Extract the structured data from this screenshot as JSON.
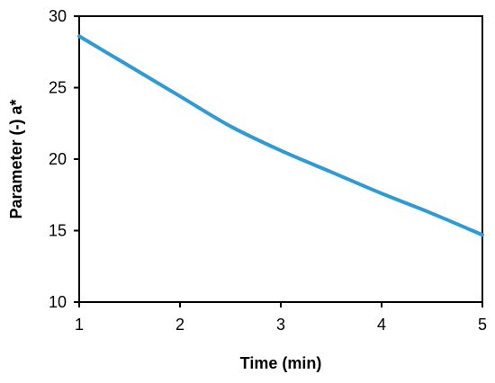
{
  "chart_data": {
    "type": "line",
    "title": "",
    "xlabel": "Time (min)",
    "ylabel": "Parameter (-) a*",
    "xlim": [
      1,
      5
    ],
    "ylim": [
      10,
      30
    ],
    "xticks": [
      1,
      2,
      3,
      4,
      5
    ],
    "yticks": [
      10,
      15,
      20,
      25,
      30
    ],
    "grid": false,
    "legend": "none",
    "series": [
      {
        "color": "#2E9BD6",
        "x": [
          1,
          1.5,
          2,
          2.5,
          3,
          3.5,
          4,
          4.5,
          5
        ],
        "y": [
          28.6,
          26.5,
          24.4,
          22.3,
          20.6,
          19.1,
          17.6,
          16.2,
          14.7
        ]
      }
    ]
  }
}
